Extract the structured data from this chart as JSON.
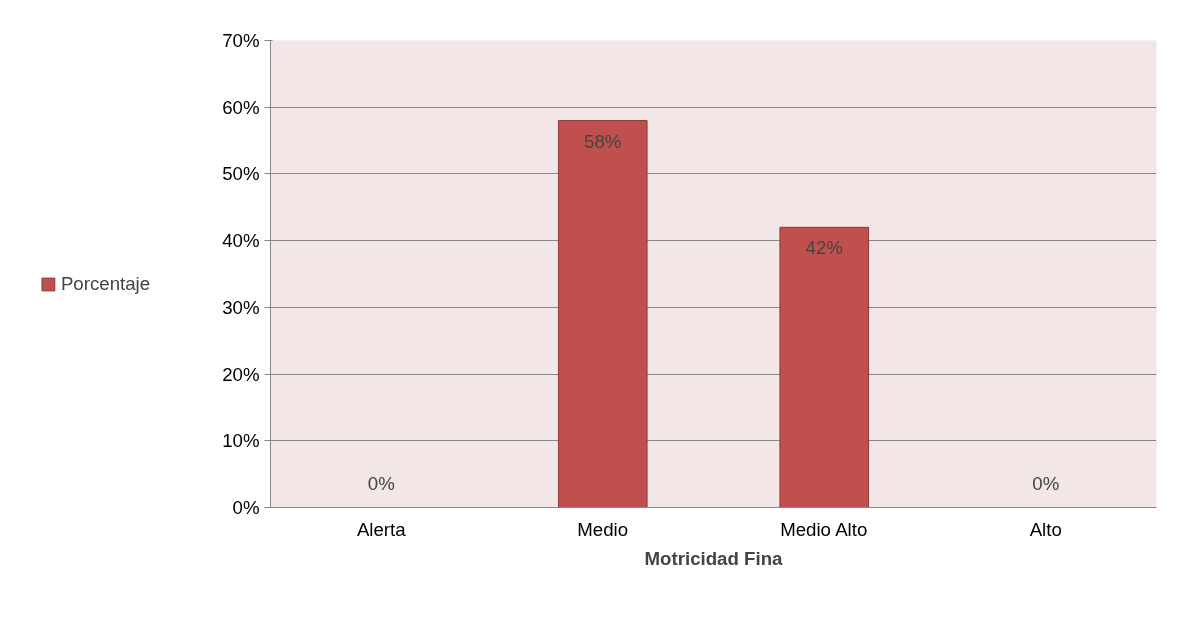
{
  "chart_data": {
    "type": "bar",
    "xlabel": "Motricidad Fina",
    "categories": [
      "Alerta",
      "Medio",
      "Medio Alto",
      "Alto"
    ],
    "series": [
      {
        "name": "Porcentaje",
        "color": "#c0504d",
        "values": [
          0,
          58,
          42,
          0
        ],
        "value_labels": [
          "0%",
          "58%",
          "42%",
          "0%"
        ]
      }
    ],
    "ylim": [
      0,
      70
    ],
    "yticks": [
      {
        "value": 0,
        "label": "0%"
      },
      {
        "value": 10,
        "label": "10%"
      },
      {
        "value": 20,
        "label": "20%"
      },
      {
        "value": 30,
        "label": "30%"
      },
      {
        "value": 40,
        "label": "40%"
      },
      {
        "value": 50,
        "label": "50%"
      },
      {
        "value": 60,
        "label": "60%"
      },
      {
        "value": 70,
        "label": "70%"
      }
    ],
    "grid": "y",
    "legend": "left"
  }
}
